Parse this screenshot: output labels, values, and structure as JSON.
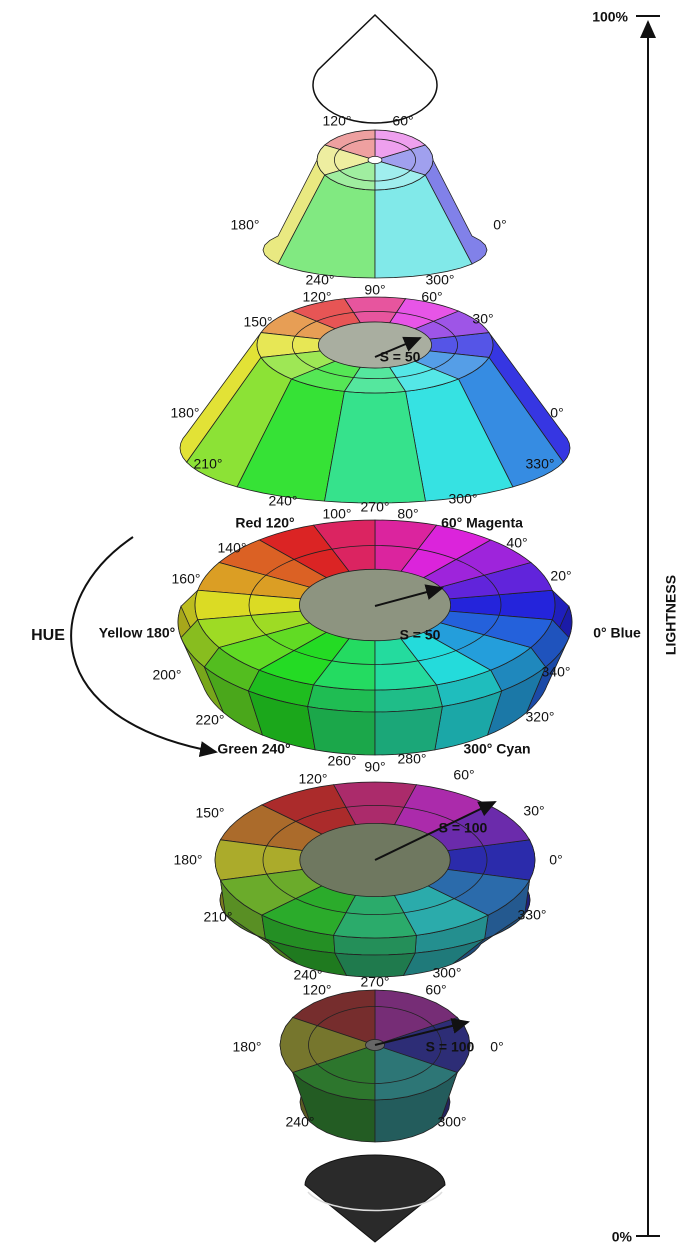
{
  "lightness_axis": {
    "top": "100%",
    "bottom": "0%",
    "title": "LIGHTNESS"
  },
  "hue_label": "HUE",
  "levels": [
    {
      "labels": [
        "120°",
        "60°",
        "180°",
        "0°",
        "240°",
        "300°"
      ]
    },
    {
      "labels": [
        "90°",
        "120°",
        "60°",
        "150°",
        "30°",
        "S = 50",
        "180°",
        "0°",
        "210°",
        "330°",
        "240°",
        "300°",
        "270°"
      ]
    },
    {
      "labels": [
        "100°",
        "80°",
        "Red 120°",
        "60° Magenta",
        "140°",
        "40°",
        "160°",
        "20°",
        "Yellow 180°",
        "0° Blue",
        "S = 50",
        "200°",
        "340°",
        "220°",
        "320°",
        "Green 240°",
        "300° Cyan",
        "260°",
        "280°",
        "90°"
      ]
    },
    {
      "labels": [
        "120°",
        "60°",
        "150°",
        "30°",
        "S = 100",
        "180°",
        "0°",
        "210°",
        "330°",
        "240°",
        "270°",
        "300°"
      ]
    },
    {
      "labels": [
        "120°",
        "60°",
        "S = 100",
        "180°",
        "0°",
        "240°",
        "300°"
      ]
    }
  ]
}
